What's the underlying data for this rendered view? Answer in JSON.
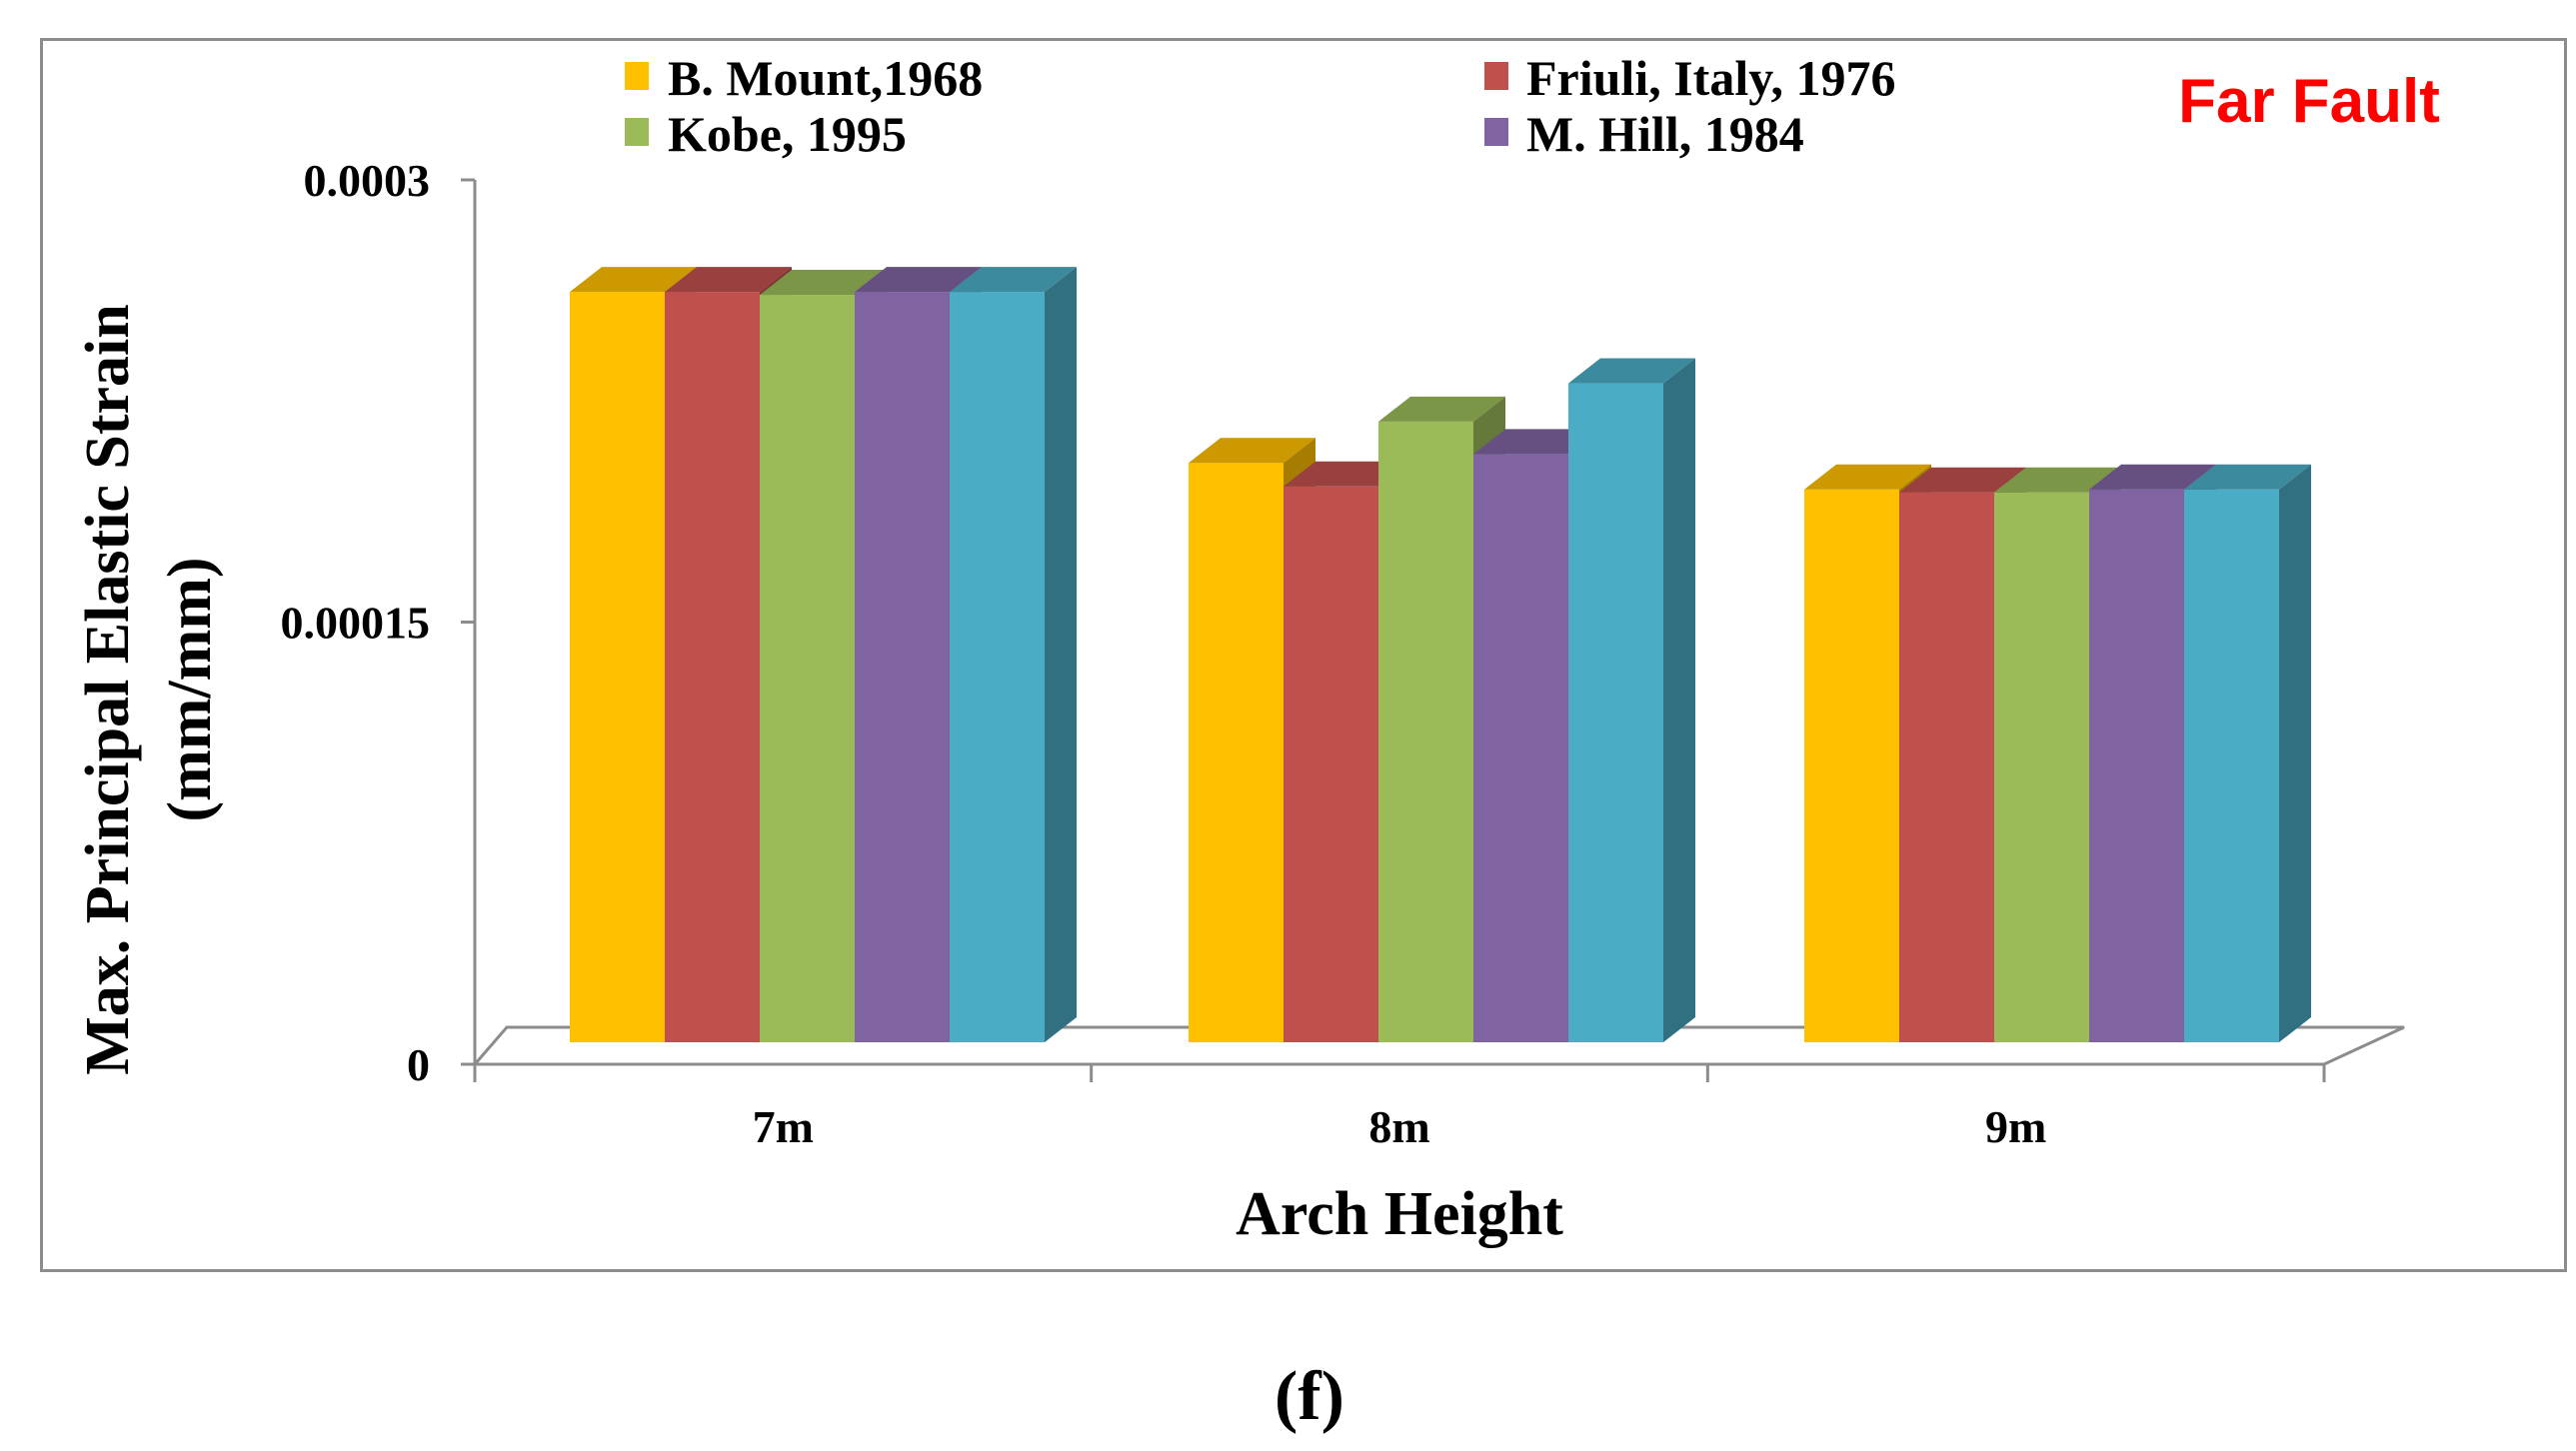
{
  "chart_data": {
    "type": "bar",
    "title": "",
    "xlabel": "Arch Height",
    "ylabel": "Max. Principal Elastic Strain",
    "ylabel_unit": "(mm/mm)",
    "annotation": "Far Fault",
    "annotation_color": "#ff0000",
    "caption": "(f)",
    "ylim": [
      0,
      0.0003
    ],
    "yticks": [
      {
        "value": 0,
        "label": "0"
      },
      {
        "value": 0.00015,
        "label": "0.00015"
      },
      {
        "value": 0.0003,
        "label": "0.0003"
      }
    ],
    "categories": [
      "7m",
      "8m",
      "9m"
    ],
    "legend": [
      {
        "label": "B. Mount,1968",
        "color": "#ffc000"
      },
      {
        "label": "Friuli, Italy, 1976",
        "color": "#c0504d"
      },
      {
        "label": "Kobe, 1995",
        "color": "#9bbb59"
      },
      {
        "label": "M. Hill, 1984",
        "color": "#8064a2"
      }
    ],
    "series": [
      {
        "name": "B. Mount,1968",
        "color": "#ffc000",
        "values": [
          0.000262,
          0.000204,
          0.000195
        ]
      },
      {
        "name": "Friuli, Italy, 1976",
        "color": "#c0504d",
        "values": [
          0.000262,
          0.000196,
          0.000194
        ]
      },
      {
        "name": "Kobe, 1995",
        "color": "#9bbb59",
        "values": [
          0.000261,
          0.000218,
          0.000194
        ]
      },
      {
        "name": "M. Hill, 1984",
        "color": "#8064a2",
        "values": [
          0.000262,
          0.000207,
          0.000195
        ]
      },
      {
        "name": "",
        "color": "#4bacc6",
        "values": [
          0.000262,
          0.000231,
          0.000195
        ]
      }
    ]
  }
}
